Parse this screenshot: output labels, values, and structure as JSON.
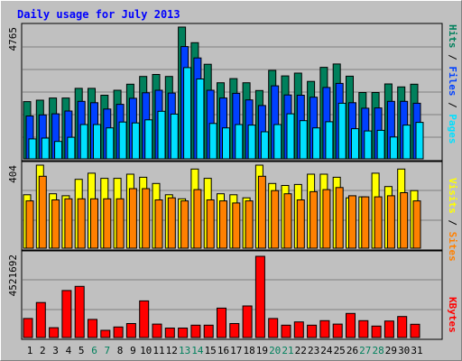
{
  "chart_data": [
    {
      "type": "bar",
      "title": "Daily usage for July 2013",
      "panel": "pages-files-hits",
      "ymax_label": "4765",
      "ymax": 4765,
      "categories": [
        "1",
        "2",
        "3",
        "4",
        "5",
        "6",
        "7",
        "8",
        "9",
        "10",
        "11",
        "12",
        "13",
        "14",
        "15",
        "16",
        "17",
        "18",
        "19",
        "20",
        "21",
        "22",
        "23",
        "24",
        "25",
        "26",
        "27",
        "28",
        "29",
        "30",
        "31"
      ],
      "weekend_days": [
        "6",
        "7",
        "13",
        "14",
        "20",
        "21",
        "27",
        "28"
      ],
      "series": [
        {
          "name": "Hits",
          "color": "#00805c",
          "values": [
            2070,
            2120,
            2200,
            2200,
            2550,
            2550,
            2300,
            2480,
            2700,
            2980,
            3050,
            2980,
            4765,
            4200,
            3420,
            2750,
            2900,
            2750,
            2470,
            3200,
            3000,
            3100,
            2800,
            3310,
            3430,
            2990,
            2400,
            2400,
            2710,
            2600,
            2700
          ]
        },
        {
          "name": "Files",
          "color": "#0040ff",
          "values": [
            1550,
            1590,
            1630,
            1730,
            2080,
            2030,
            1800,
            1970,
            2190,
            2390,
            2480,
            2380,
            4060,
            3650,
            2480,
            2200,
            2370,
            2130,
            1930,
            2640,
            2310,
            2300,
            2230,
            2580,
            2730,
            2030,
            1830,
            1840,
            2080,
            2080,
            2010
          ]
        },
        {
          "name": "Pages",
          "color": "#00e0ff",
          "values": [
            720,
            750,
            630,
            780,
            1240,
            1240,
            1120,
            1330,
            1300,
            1410,
            1720,
            1620,
            3300,
            2890,
            1280,
            1120,
            1240,
            1220,
            980,
            1240,
            1630,
            1380,
            1120,
            1340,
            2010,
            1090,
            1010,
            1030,
            790,
            1220,
            1320
          ]
        }
      ]
    },
    {
      "type": "bar",
      "panel": "visits-sites",
      "ymax_label": "404",
      "ymax": 404,
      "categories": [
        "1",
        "2",
        "3",
        "4",
        "5",
        "6",
        "7",
        "8",
        "9",
        "10",
        "11",
        "12",
        "13",
        "14",
        "15",
        "16",
        "17",
        "18",
        "19",
        "20",
        "21",
        "22",
        "23",
        "24",
        "25",
        "26",
        "27",
        "28",
        "29",
        "30",
        "31"
      ],
      "series": [
        {
          "name": "Visits",
          "color": "#ffff00",
          "values": [
            260,
            404,
            265,
            255,
            335,
            365,
            340,
            340,
            360,
            345,
            315,
            260,
            240,
            385,
            340,
            265,
            260,
            245,
            404,
            315,
            305,
            310,
            360,
            360,
            345,
            245,
            250,
            365,
            300,
            385,
            280
          ]
        },
        {
          "name": "Sites",
          "color": "#ff8000",
          "values": [
            230,
            350,
            235,
            240,
            240,
            240,
            240,
            240,
            290,
            290,
            235,
            245,
            230,
            285,
            235,
            230,
            220,
            230,
            350,
            280,
            265,
            235,
            275,
            285,
            295,
            255,
            250,
            250,
            255,
            270,
            230
          ]
        }
      ]
    },
    {
      "type": "bar",
      "panel": "kbytes",
      "ymax_label": "4521692",
      "ymax": 4521692,
      "categories": [
        "1",
        "2",
        "3",
        "4",
        "5",
        "6",
        "7",
        "8",
        "9",
        "10",
        "11",
        "12",
        "13",
        "14",
        "15",
        "16",
        "17",
        "18",
        "19",
        "20",
        "21",
        "22",
        "23",
        "24",
        "25",
        "26",
        "27",
        "28",
        "29",
        "30",
        "31"
      ],
      "series": [
        {
          "name": "KBytes",
          "color": "#ff0000",
          "values": [
            1060000,
            1950000,
            550000,
            2620000,
            2850000,
            1010000,
            400000,
            590000,
            780000,
            2040000,
            750000,
            530000,
            530000,
            690000,
            690000,
            1640000,
            780000,
            1760000,
            4521692,
            1060000,
            690000,
            870000,
            690000,
            940000,
            750000,
            1340000,
            940000,
            640000,
            920000,
            1170000,
            740000
          ]
        }
      ]
    }
  ],
  "side_labels": {
    "top": [
      {
        "text": "Hits",
        "color": "#00805c"
      },
      {
        "text": " / ",
        "color": "#000000"
      },
      {
        "text": "Files",
        "color": "#0040ff"
      },
      {
        "text": " / ",
        "color": "#000000"
      },
      {
        "text": "Pages",
        "color": "#00e0ff"
      }
    ],
    "middle": [
      {
        "text": "Visits",
        "color": "#ffff00"
      },
      {
        "text": " / ",
        "color": "#000000"
      },
      {
        "text": "Sites",
        "color": "#ff8000"
      }
    ],
    "bottom": [
      {
        "text": "KBytes",
        "color": "#ff0000"
      }
    ]
  },
  "colors": {
    "background": "#c0c0c0",
    "title": "#0000ff",
    "weekday_label": "#000000",
    "weekend_label": "#00805c"
  }
}
